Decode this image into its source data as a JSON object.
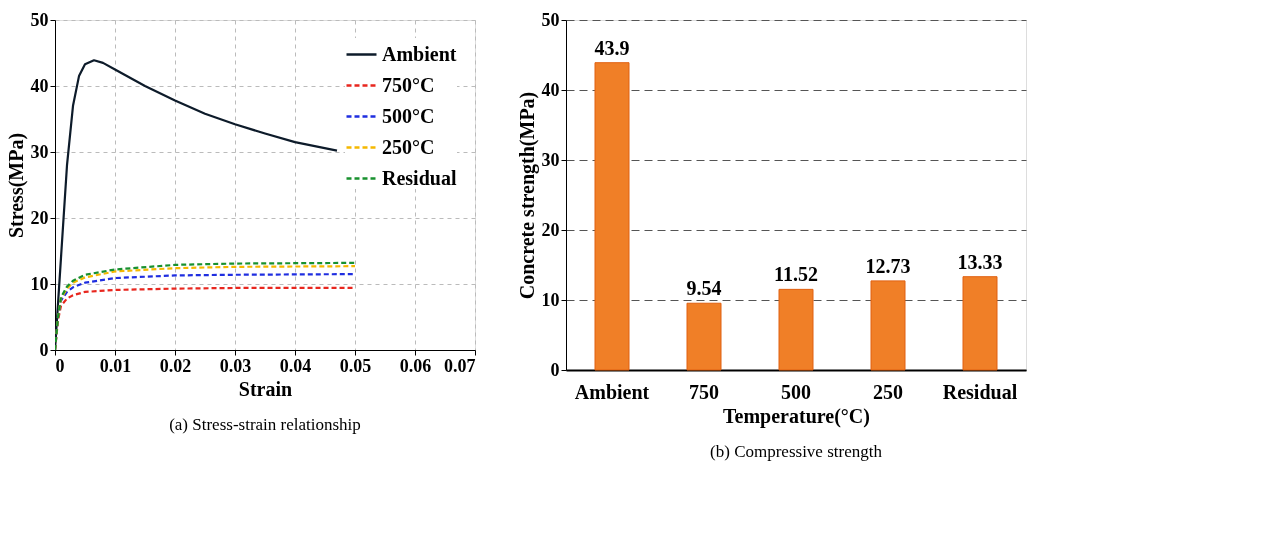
{
  "chart_data": [
    {
      "type": "line",
      "title": "(a) Stress-strain relationship",
      "xlabel": "Strain",
      "ylabel": "Stress(MPa)",
      "xlim": [
        0,
        0.07
      ],
      "xticks": [
        {
          "value": 0,
          "label": "0"
        },
        0.01,
        0.02,
        0.03,
        0.04,
        0.05,
        0.06,
        0.07
      ],
      "ylim": [
        0,
        50
      ],
      "yticks": [
        0,
        10,
        20,
        30,
        40,
        50
      ],
      "grid": true,
      "legend": "top right",
      "marker": "none",
      "series": [
        {
          "name": "Ambient",
          "color": "#0d1b2a",
          "line_style": "solid",
          "x": [
            0,
            0.001,
            0.002,
            0.003,
            0.004,
            0.005,
            0.0065,
            0.008,
            0.01,
            0.015,
            0.02,
            0.025,
            0.03,
            0.035,
            0.04,
            0.047
          ],
          "values": [
            0,
            14,
            28,
            37,
            41.5,
            43.3,
            43.9,
            43.5,
            42.5,
            40,
            37.8,
            35.8,
            34.2,
            32.8,
            31.5,
            30.2
          ]
        },
        {
          "name": "750°C",
          "color": "#e8261e",
          "line_style": "dashed",
          "x": [
            0,
            0.0005,
            0.001,
            0.002,
            0.003,
            0.005,
            0.01,
            0.02,
            0.03,
            0.05
          ],
          "values": [
            0,
            4.5,
            6.7,
            7.8,
            8.3,
            8.8,
            9.1,
            9.3,
            9.4,
            9.4
          ]
        },
        {
          "name": "500°C",
          "color": "#1f2ee0",
          "line_style": "dashed",
          "x": [
            0,
            0.0005,
            0.001,
            0.002,
            0.003,
            0.005,
            0.01,
            0.02,
            0.03,
            0.05
          ],
          "values": [
            0,
            5,
            7.5,
            8.8,
            9.5,
            10.2,
            10.9,
            11.3,
            11.4,
            11.5
          ]
        },
        {
          "name": "250°C",
          "color": "#f5b800",
          "line_style": "dashed",
          "x": [
            0,
            0.0005,
            0.001,
            0.002,
            0.003,
            0.005,
            0.01,
            0.02,
            0.03,
            0.05
          ],
          "values": [
            0,
            5,
            7.8,
            9.3,
            10.2,
            11,
            11.9,
            12.4,
            12.6,
            12.7
          ]
        },
        {
          "name": "Residual",
          "color": "#18912e",
          "line_style": "dashed",
          "x": [
            0,
            0.0005,
            0.001,
            0.002,
            0.003,
            0.005,
            0.01,
            0.02,
            0.03,
            0.05
          ],
          "values": [
            0,
            5,
            8,
            9.6,
            10.5,
            11.4,
            12.2,
            12.9,
            13.1,
            13.2
          ]
        }
      ]
    },
    {
      "type": "bar",
      "title": "(b) Compressive strength",
      "xlabel": "Temperature(°C)",
      "ylabel": "Concrete strength(MPa)",
      "categories": [
        "Ambient",
        "750",
        "500",
        "250",
        "Residual"
      ],
      "values": [
        43.9,
        9.54,
        11.52,
        12.73,
        13.33
      ],
      "color": "#f07f27",
      "ylim": [
        0,
        50
      ],
      "yticks": [
        0,
        10,
        20,
        30,
        40,
        50
      ],
      "grid": "y",
      "data_labels": true
    }
  ]
}
